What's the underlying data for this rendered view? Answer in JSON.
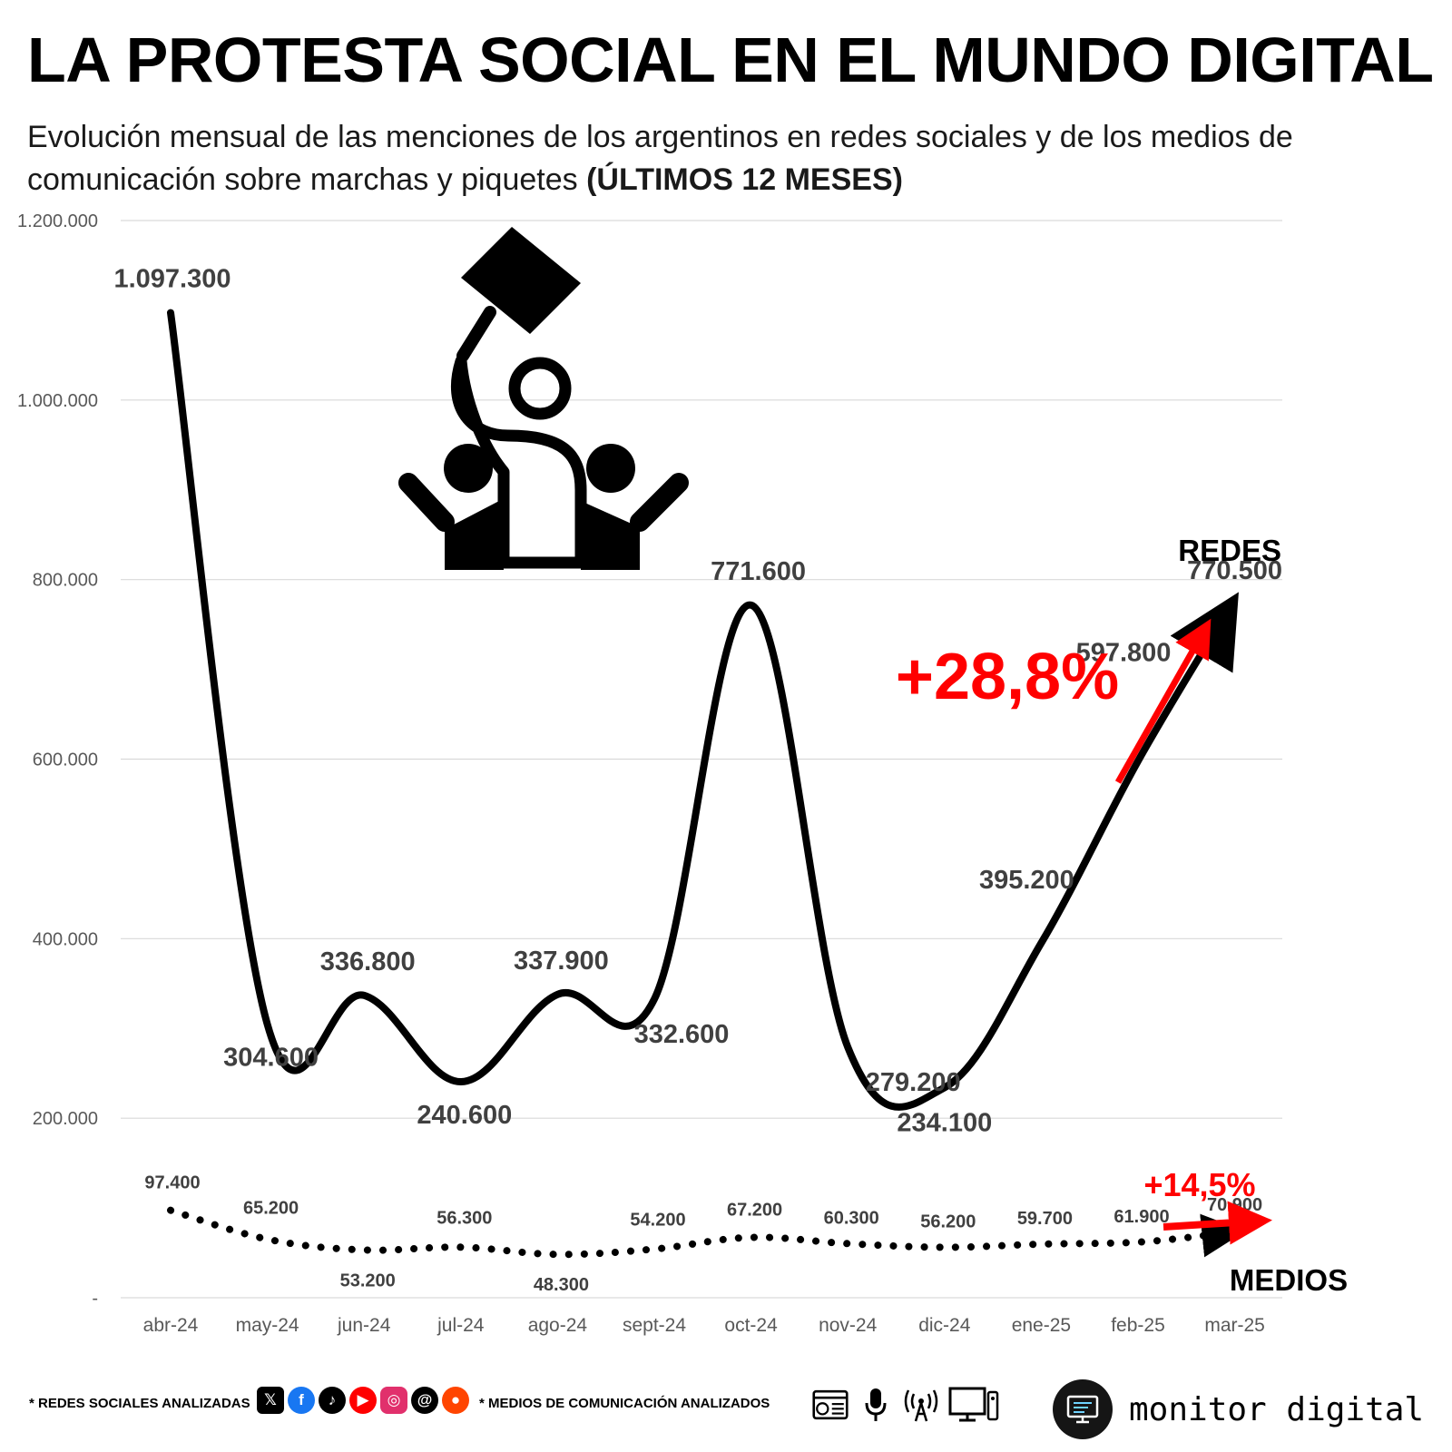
{
  "title": "LA PROTESTA SOCIAL EN EL MUNDO DIGITAL",
  "subtitle_main": "Evolución mensual de las menciones de los argentinos en redes sociales y de los medios de comunicación sobre marchas y piquetes ",
  "subtitle_bold": "(ÚLTIMOS 12 MESES)",
  "chart_data": {
    "type": "line",
    "title": "LA PROTESTA SOCIAL EN EL MUNDO DIGITAL",
    "categories": [
      "abr-24",
      "may-24",
      "jun-24",
      "jul-24",
      "ago-24",
      "sept-24",
      "oct-24",
      "nov-24",
      "dic-24",
      "ene-25",
      "feb-25",
      "mar-25"
    ],
    "y_ticks": [
      0,
      200000,
      400000,
      600000,
      800000,
      1000000,
      1200000
    ],
    "y_tick_labels": [
      "-",
      "200.000",
      "400.000",
      "600.000",
      "800.000",
      "1.000.000",
      "1.200.000"
    ],
    "ylim": [
      0,
      1200000
    ],
    "grid": true,
    "series": [
      {
        "name": "REDES",
        "style": "solid",
        "values": [
          1097300,
          304600,
          336800,
          240600,
          337900,
          332600,
          771600,
          279200,
          234100,
          395200,
          597800,
          770500
        ],
        "labels": [
          "1.097.300",
          "304.600",
          "336.800",
          "240.600",
          "337.900",
          "332.600",
          "771.600",
          "279.200",
          "234.100",
          "395.200",
          "597.800",
          "770.500"
        ],
        "change_label": "+28,8%"
      },
      {
        "name": "MEDIOS",
        "style": "dotted",
        "values": [
          97400,
          65200,
          53200,
          56300,
          48300,
          54200,
          67200,
          60300,
          56200,
          59700,
          61900,
          70900
        ],
        "labels": [
          "97.400",
          "65.200",
          "53.200",
          "56.300",
          "48.300",
          "54.200",
          "67.200",
          "60.300",
          "56.200",
          "59.700",
          "61.900",
          "70.900"
        ],
        "change_label": "+14,5%"
      }
    ]
  },
  "footer": {
    "social_label": "* REDES SOCIALES ANALIZADAS",
    "social_icons": [
      "x-icon",
      "facebook-icon",
      "tiktok-icon",
      "youtube-icon",
      "instagram-icon",
      "threads-icon",
      "reddit-icon"
    ],
    "media_label": "* MEDIOS DE COMUNICACIÓN ANALIZADOS",
    "media_icons": [
      "web-news-icon",
      "microphone-icon",
      "antenna-icon",
      "tv-icon"
    ],
    "brand": "monitor digital"
  },
  "colors": {
    "accent": "#ff0000",
    "line": "#000000",
    "grid": "#d9d9d9",
    "label": "#404040"
  }
}
